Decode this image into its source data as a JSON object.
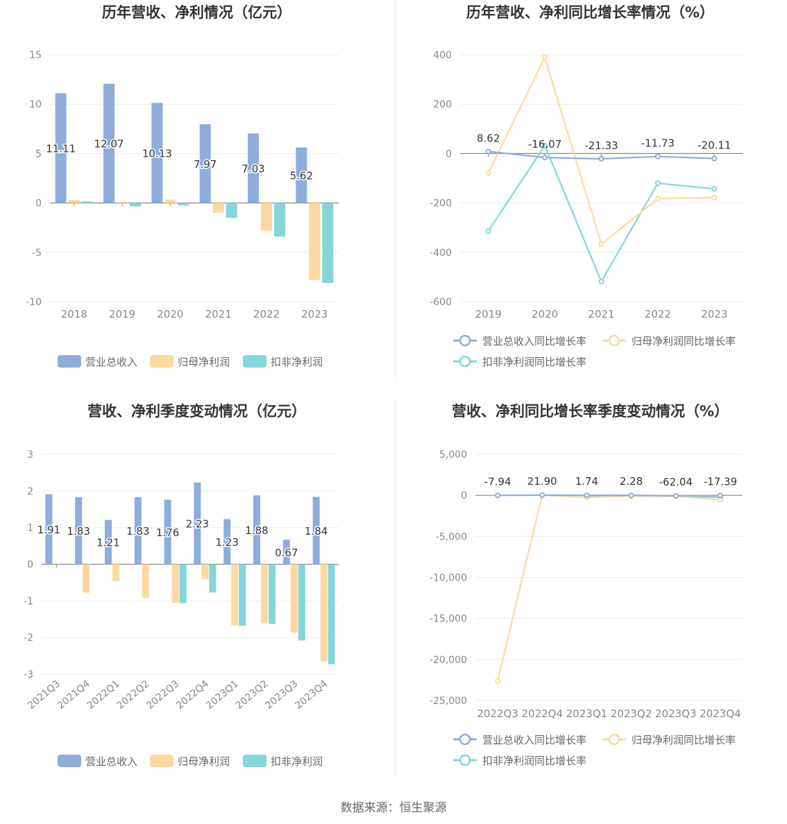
{
  "footer": {
    "source": "数据来源：恒生聚源"
  },
  "chart_data": [
    {
      "type": "bar",
      "title": "历年营收、净利情况（亿元）",
      "categories": [
        "2018",
        "2019",
        "2020",
        "2021",
        "2022",
        "2023"
      ],
      "ylim": [
        -10,
        15
      ],
      "yticks": [
        -10,
        -5,
        0,
        5,
        10,
        15
      ],
      "grid": true,
      "legend_position": "bottom",
      "series": [
        {
          "name": "营业总收入",
          "color": "#8eaddb",
          "values": [
            11.11,
            12.07,
            10.13,
            7.97,
            7.03,
            5.62
          ],
          "labels": [
            "11.11",
            "12.07",
            "10.13",
            "7.97",
            "7.03",
            "5.62"
          ]
        },
        {
          "name": "归母净利润",
          "color": "#fdd8a0",
          "values": [
            0.3,
            0.1,
            0.35,
            -1.0,
            -2.8,
            -7.8
          ]
        },
        {
          "name": "扣非净利润",
          "color": "#85d5d9",
          "values": [
            0.15,
            -0.35,
            -0.25,
            -1.5,
            -3.4,
            -8.1
          ]
        }
      ]
    },
    {
      "type": "line",
      "title": "历年营收、净利同比增长率情况（%）",
      "categories": [
        "2019",
        "2020",
        "2021",
        "2022",
        "2023"
      ],
      "ylim": [
        -600,
        400
      ],
      "yticks": [
        -600,
        -400,
        -200,
        0,
        200,
        400
      ],
      "grid": true,
      "legend_position": "bottom",
      "series": [
        {
          "name": "营业总收入同比增长率",
          "color": "#8eaddb",
          "values": [
            8.62,
            -16.07,
            -21.33,
            -11.73,
            -20.11
          ],
          "labels": [
            "8.62",
            "-16.07",
            "-21.33",
            "-11.73",
            "-20.11"
          ]
        },
        {
          "name": "归母净利润同比增长率",
          "color": "#fdd8a0",
          "values": [
            -78,
            390,
            -367,
            -183,
            -178
          ]
        },
        {
          "name": "扣非净利润同比增长率",
          "color": "#85d5d9",
          "values": [
            -313,
            32,
            -518,
            -120,
            -143
          ]
        }
      ]
    },
    {
      "type": "bar",
      "title": "营收、净利季度变动情况（亿元）",
      "categories": [
        "2021Q3",
        "2021Q4",
        "2022Q1",
        "2022Q2",
        "2022Q3",
        "2022Q4",
        "2023Q1",
        "2023Q2",
        "2023Q3",
        "2023Q4"
      ],
      "ylim": [
        -3,
        3
      ],
      "yticks": [
        -3,
        -2,
        -1,
        0,
        1,
        2,
        3
      ],
      "grid": true,
      "legend_position": "bottom",
      "series": [
        {
          "name": "营业总收入",
          "color": "#8eaddb",
          "values": [
            1.91,
            1.83,
            1.21,
            1.83,
            1.76,
            2.23,
            1.23,
            1.88,
            0.67,
            1.84
          ],
          "labels": [
            "1.91",
            "1.83",
            "1.21",
            "1.83",
            "1.76",
            "2.23",
            "1.23",
            "1.88",
            "0.67",
            "1.84"
          ]
        },
        {
          "name": "归母净利润",
          "color": "#fdd8a0",
          "values": [
            0,
            -0.78,
            -0.46,
            -0.92,
            -1.05,
            -0.4,
            -1.67,
            -1.61,
            -1.87,
            -2.65
          ]
        },
        {
          "name": "扣非净利润",
          "color": "#85d5d9",
          "values": [
            0,
            0,
            0,
            0,
            -1.06,
            -0.77,
            -1.68,
            -1.63,
            -2.08,
            -2.73
          ]
        }
      ]
    },
    {
      "type": "line",
      "title": "营收、净利同比增长率季度变动情况（%）",
      "categories": [
        "2022Q3",
        "2022Q4",
        "2023Q1",
        "2023Q2",
        "2023Q3",
        "2023Q4"
      ],
      "ylim": [
        -25000,
        5000
      ],
      "yticks": [
        -25000,
        -20000,
        -15000,
        -10000,
        -5000,
        0,
        5000
      ],
      "ytick_labels": [
        "-25,000",
        "-20,000",
        "-15,000",
        "-10,000",
        "-5,000",
        "0",
        "5,000"
      ],
      "grid": true,
      "legend_position": "bottom",
      "series": [
        {
          "name": "营业总收入同比增长率",
          "color": "#8eaddb",
          "values": [
            -7.94,
            21.9,
            1.74,
            2.28,
            -62.04,
            -17.39
          ],
          "labels": [
            "-7.94",
            "21.90",
            "1.74",
            "2.28",
            "-62.04",
            "-17.39"
          ]
        },
        {
          "name": "归母净利润同比增长率",
          "color": "#fdd8a0",
          "values": [
            -22600,
            30,
            -260,
            -80,
            -100,
            -560
          ]
        },
        {
          "name": "扣非净利润同比增长率",
          "color": "#85d5d9",
          "values": [
            null,
            null,
            -120,
            -60,
            -80,
            -250
          ]
        }
      ]
    }
  ]
}
